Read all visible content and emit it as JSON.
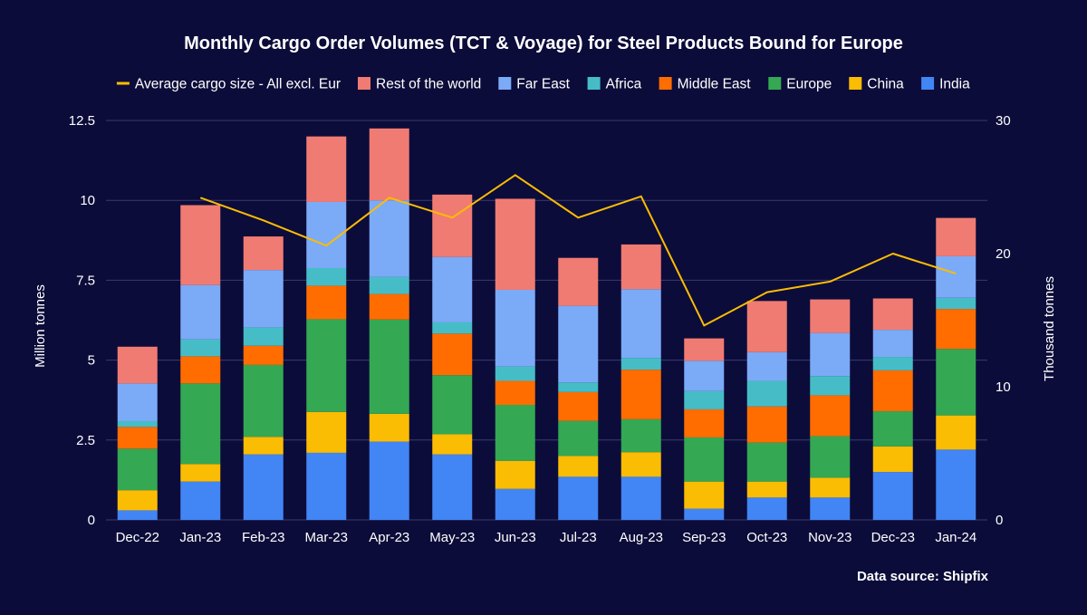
{
  "chart_data": {
    "type": "bar",
    "stacked": true,
    "title": "Monthly Cargo Order Volumes (TCT & Voyage) for Steel Products Bound for Europe",
    "ylabel": "Million tonnes",
    "y2label": "Thousand tonnes",
    "ylim": [
      0,
      12.5
    ],
    "y2lim": [
      0,
      30
    ],
    "yticks": [
      "0",
      "2.5",
      "5",
      "7.5",
      "10",
      "12.5"
    ],
    "y2ticks": [
      "0",
      "10",
      "20",
      "30"
    ],
    "source": "Data source: Shipfix",
    "categories": [
      "Dec-22",
      "Jan-23",
      "Feb-23",
      "Mar-23",
      "Apr-23",
      "May-23",
      "Jun-23",
      "Jul-23",
      "Aug-23",
      "Sep-23",
      "Oct-23",
      "Nov-23",
      "Dec-23",
      "Jan-24"
    ],
    "series": [
      {
        "name": "India",
        "color": "#4285f4",
        "values": [
          0.3,
          1.2,
          2.05,
          2.1,
          2.45,
          2.05,
          0.97,
          1.35,
          1.35,
          0.35,
          0.7,
          0.7,
          1.5,
          2.2
        ]
      },
      {
        "name": "China",
        "color": "#fbbc04",
        "values": [
          0.63,
          0.55,
          0.55,
          1.28,
          0.87,
          0.63,
          0.88,
          0.65,
          0.77,
          0.85,
          0.5,
          0.62,
          0.8,
          1.07
        ]
      },
      {
        "name": "Europe",
        "color": "#34a853",
        "values": [
          1.3,
          2.52,
          2.25,
          2.9,
          2.95,
          1.85,
          1.75,
          1.1,
          1.03,
          1.38,
          1.22,
          1.3,
          1.1,
          2.08
        ]
      },
      {
        "name": "Middle East",
        "color": "#ff6d01",
        "values": [
          0.68,
          0.85,
          0.6,
          1.05,
          0.8,
          1.3,
          0.75,
          0.9,
          1.55,
          0.88,
          1.13,
          1.28,
          1.28,
          1.25
        ]
      },
      {
        "name": "Africa",
        "color": "#46bdc6",
        "values": [
          0.18,
          0.53,
          0.57,
          0.55,
          0.53,
          0.35,
          0.45,
          0.3,
          0.37,
          0.57,
          0.8,
          0.6,
          0.42,
          0.35
        ]
      },
      {
        "name": "Far East",
        "color": "#7baaf7",
        "values": [
          1.18,
          1.7,
          1.8,
          2.07,
          2.4,
          2.05,
          2.4,
          2.4,
          2.15,
          0.95,
          0.9,
          1.35,
          0.85,
          1.3
        ]
      },
      {
        "name": "Rest of the world",
        "color": "#f07b72",
        "values": [
          1.15,
          2.5,
          1.05,
          2.05,
          2.25,
          1.95,
          2.85,
          1.5,
          1.4,
          0.7,
          1.6,
          1.05,
          0.98,
          1.2
        ]
      }
    ],
    "line_series": {
      "name": "Average cargo size - All excl. Eur",
      "color": "#fbbc04",
      "axis": "right",
      "values": [
        null,
        24.2,
        22.5,
        20.6,
        24.2,
        22.7,
        25.9,
        22.7,
        24.3,
        14.6,
        17.1,
        17.9,
        20.0,
        18.5
      ]
    },
    "legend": [
      "Average cargo size - All excl. Eur",
      "Rest of the world",
      "Far East",
      "Africa",
      "Middle East",
      "Europe",
      "China",
      "India"
    ]
  }
}
